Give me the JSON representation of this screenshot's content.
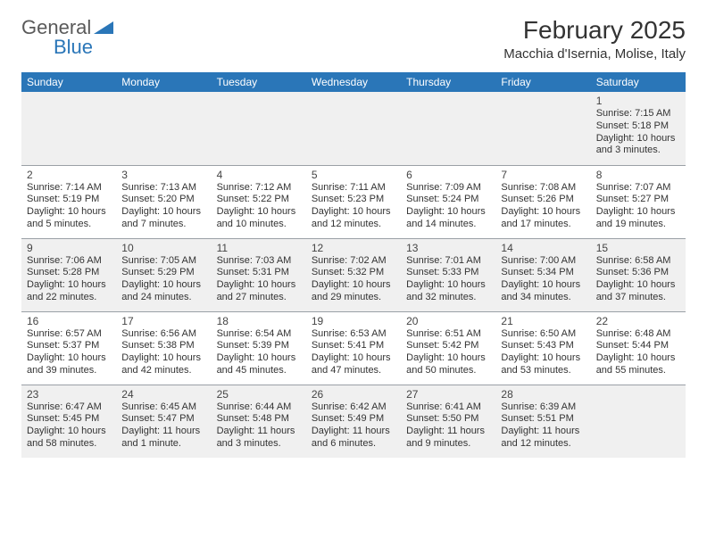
{
  "logo": {
    "line1": "General",
    "line2": "Blue",
    "triangle_color": "#2a76b8"
  },
  "title": "February 2025",
  "location": "Macchia d'Isernia, Molise, Italy",
  "colors": {
    "header_bg": "#2a76b8",
    "header_fg": "#ffffff",
    "stripe_bg": "#f0f0f0",
    "border": "#9aa0a6",
    "text": "#333333"
  },
  "day_headers": [
    "Sunday",
    "Monday",
    "Tuesday",
    "Wednesday",
    "Thursday",
    "Friday",
    "Saturday"
  ],
  "weeks": [
    [
      null,
      null,
      null,
      null,
      null,
      null,
      {
        "n": "1",
        "sunrise": "Sunrise: 7:15 AM",
        "sunset": "Sunset: 5:18 PM",
        "day1": "Daylight: 10 hours",
        "day2": "and 3 minutes."
      }
    ],
    [
      {
        "n": "2",
        "sunrise": "Sunrise: 7:14 AM",
        "sunset": "Sunset: 5:19 PM",
        "day1": "Daylight: 10 hours",
        "day2": "and 5 minutes."
      },
      {
        "n": "3",
        "sunrise": "Sunrise: 7:13 AM",
        "sunset": "Sunset: 5:20 PM",
        "day1": "Daylight: 10 hours",
        "day2": "and 7 minutes."
      },
      {
        "n": "4",
        "sunrise": "Sunrise: 7:12 AM",
        "sunset": "Sunset: 5:22 PM",
        "day1": "Daylight: 10 hours",
        "day2": "and 10 minutes."
      },
      {
        "n": "5",
        "sunrise": "Sunrise: 7:11 AM",
        "sunset": "Sunset: 5:23 PM",
        "day1": "Daylight: 10 hours",
        "day2": "and 12 minutes."
      },
      {
        "n": "6",
        "sunrise": "Sunrise: 7:09 AM",
        "sunset": "Sunset: 5:24 PM",
        "day1": "Daylight: 10 hours",
        "day2": "and 14 minutes."
      },
      {
        "n": "7",
        "sunrise": "Sunrise: 7:08 AM",
        "sunset": "Sunset: 5:26 PM",
        "day1": "Daylight: 10 hours",
        "day2": "and 17 minutes."
      },
      {
        "n": "8",
        "sunrise": "Sunrise: 7:07 AM",
        "sunset": "Sunset: 5:27 PM",
        "day1": "Daylight: 10 hours",
        "day2": "and 19 minutes."
      }
    ],
    [
      {
        "n": "9",
        "sunrise": "Sunrise: 7:06 AM",
        "sunset": "Sunset: 5:28 PM",
        "day1": "Daylight: 10 hours",
        "day2": "and 22 minutes."
      },
      {
        "n": "10",
        "sunrise": "Sunrise: 7:05 AM",
        "sunset": "Sunset: 5:29 PM",
        "day1": "Daylight: 10 hours",
        "day2": "and 24 minutes."
      },
      {
        "n": "11",
        "sunrise": "Sunrise: 7:03 AM",
        "sunset": "Sunset: 5:31 PM",
        "day1": "Daylight: 10 hours",
        "day2": "and 27 minutes."
      },
      {
        "n": "12",
        "sunrise": "Sunrise: 7:02 AM",
        "sunset": "Sunset: 5:32 PM",
        "day1": "Daylight: 10 hours",
        "day2": "and 29 minutes."
      },
      {
        "n": "13",
        "sunrise": "Sunrise: 7:01 AM",
        "sunset": "Sunset: 5:33 PM",
        "day1": "Daylight: 10 hours",
        "day2": "and 32 minutes."
      },
      {
        "n": "14",
        "sunrise": "Sunrise: 7:00 AM",
        "sunset": "Sunset: 5:34 PM",
        "day1": "Daylight: 10 hours",
        "day2": "and 34 minutes."
      },
      {
        "n": "15",
        "sunrise": "Sunrise: 6:58 AM",
        "sunset": "Sunset: 5:36 PM",
        "day1": "Daylight: 10 hours",
        "day2": "and 37 minutes."
      }
    ],
    [
      {
        "n": "16",
        "sunrise": "Sunrise: 6:57 AM",
        "sunset": "Sunset: 5:37 PM",
        "day1": "Daylight: 10 hours",
        "day2": "and 39 minutes."
      },
      {
        "n": "17",
        "sunrise": "Sunrise: 6:56 AM",
        "sunset": "Sunset: 5:38 PM",
        "day1": "Daylight: 10 hours",
        "day2": "and 42 minutes."
      },
      {
        "n": "18",
        "sunrise": "Sunrise: 6:54 AM",
        "sunset": "Sunset: 5:39 PM",
        "day1": "Daylight: 10 hours",
        "day2": "and 45 minutes."
      },
      {
        "n": "19",
        "sunrise": "Sunrise: 6:53 AM",
        "sunset": "Sunset: 5:41 PM",
        "day1": "Daylight: 10 hours",
        "day2": "and 47 minutes."
      },
      {
        "n": "20",
        "sunrise": "Sunrise: 6:51 AM",
        "sunset": "Sunset: 5:42 PM",
        "day1": "Daylight: 10 hours",
        "day2": "and 50 minutes."
      },
      {
        "n": "21",
        "sunrise": "Sunrise: 6:50 AM",
        "sunset": "Sunset: 5:43 PM",
        "day1": "Daylight: 10 hours",
        "day2": "and 53 minutes."
      },
      {
        "n": "22",
        "sunrise": "Sunrise: 6:48 AM",
        "sunset": "Sunset: 5:44 PM",
        "day1": "Daylight: 10 hours",
        "day2": "and 55 minutes."
      }
    ],
    [
      {
        "n": "23",
        "sunrise": "Sunrise: 6:47 AM",
        "sunset": "Sunset: 5:45 PM",
        "day1": "Daylight: 10 hours",
        "day2": "and 58 minutes."
      },
      {
        "n": "24",
        "sunrise": "Sunrise: 6:45 AM",
        "sunset": "Sunset: 5:47 PM",
        "day1": "Daylight: 11 hours",
        "day2": "and 1 minute."
      },
      {
        "n": "25",
        "sunrise": "Sunrise: 6:44 AM",
        "sunset": "Sunset: 5:48 PM",
        "day1": "Daylight: 11 hours",
        "day2": "and 3 minutes."
      },
      {
        "n": "26",
        "sunrise": "Sunrise: 6:42 AM",
        "sunset": "Sunset: 5:49 PM",
        "day1": "Daylight: 11 hours",
        "day2": "and 6 minutes."
      },
      {
        "n": "27",
        "sunrise": "Sunrise: 6:41 AM",
        "sunset": "Sunset: 5:50 PM",
        "day1": "Daylight: 11 hours",
        "day2": "and 9 minutes."
      },
      {
        "n": "28",
        "sunrise": "Sunrise: 6:39 AM",
        "sunset": "Sunset: 5:51 PM",
        "day1": "Daylight: 11 hours",
        "day2": "and 12 minutes."
      },
      null
    ]
  ]
}
